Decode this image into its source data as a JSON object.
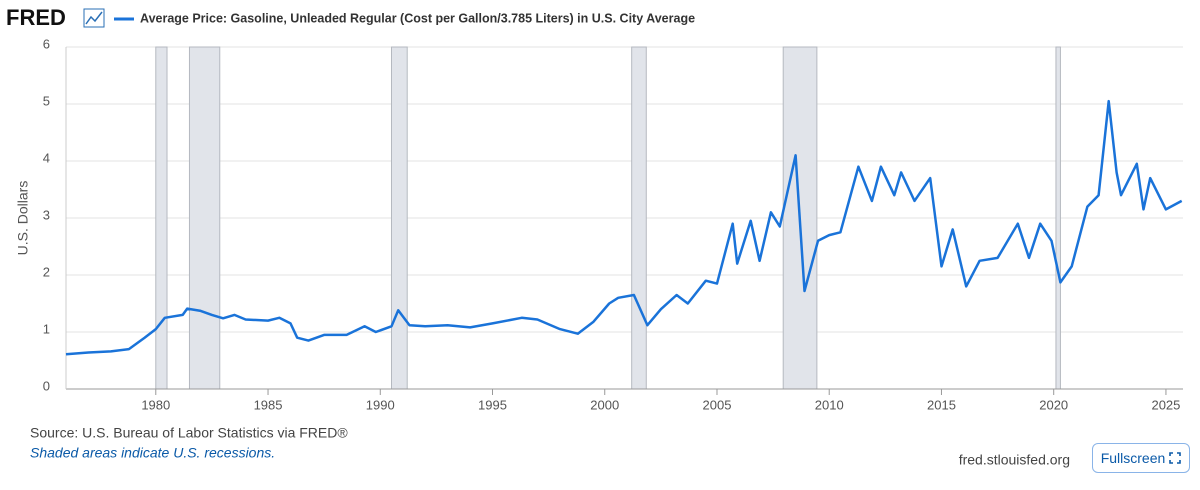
{
  "logo": "FRED",
  "fullscreen": "Fullscreen",
  "chart_data": {
    "type": "line",
    "y_label": "U.S. Dollars",
    "source": "Source: U.S. Bureau of Labor Statistics via FRED®",
    "note": "Shaded areas indicate U.S. recessions.",
    "site": "fred.stlouisfed.org",
    "x": [
      1976.0,
      1977.0,
      1978.0,
      1978.8,
      1979.5,
      1980.0,
      1980.4,
      1981.2,
      1981.4,
      1982.0,
      1982.5,
      1983.0,
      1983.5,
      1984.0,
      1985.0,
      1985.5,
      1986.0,
      1986.3,
      1986.8,
      1987.5,
      1988.5,
      1989.3,
      1989.8,
      1990.5,
      1990.8,
      1991.3,
      1992.0,
      1993.0,
      1994.0,
      1995.0,
      1996.3,
      1997.0,
      1998.0,
      1998.8,
      1999.5,
      2000.2,
      2000.6,
      2001.3,
      2001.9,
      2002.5,
      2003.2,
      2003.7,
      2004.5,
      2005.0,
      2005.7,
      2005.9,
      2006.5,
      2006.9,
      2007.4,
      2007.8,
      2008.5,
      2008.9,
      2009.5,
      2010.0,
      2010.5,
      2011.3,
      2011.9,
      2012.3,
      2012.9,
      2013.2,
      2013.8,
      2014.5,
      2015.0,
      2015.5,
      2016.1,
      2016.7,
      2017.5,
      2018.4,
      2018.9,
      2019.4,
      2019.9,
      2020.3,
      2020.8,
      2021.5,
      2022.0,
      2022.45,
      2022.8,
      2023.0,
      2023.7,
      2024.0,
      2024.3,
      2025.0,
      2025.7
    ],
    "series": [
      {
        "name": "Average Price: Gasoline, Unleaded Regular (Cost per Gallon/3.785 Liters) in U.S. City Average",
        "color": "#1a73d9",
        "values": [
          0.61,
          0.64,
          0.66,
          0.7,
          0.9,
          1.05,
          1.25,
          1.3,
          1.41,
          1.37,
          1.3,
          1.24,
          1.3,
          1.22,
          1.2,
          1.25,
          1.15,
          0.9,
          0.85,
          0.95,
          0.95,
          1.1,
          1.0,
          1.1,
          1.38,
          1.12,
          1.1,
          1.12,
          1.08,
          1.15,
          1.25,
          1.22,
          1.05,
          0.97,
          1.18,
          1.5,
          1.6,
          1.65,
          1.12,
          1.4,
          1.65,
          1.5,
          1.9,
          1.85,
          2.9,
          2.2,
          2.95,
          2.25,
          3.1,
          2.85,
          4.1,
          1.72,
          2.6,
          2.7,
          2.75,
          3.9,
          3.3,
          3.9,
          3.4,
          3.8,
          3.3,
          3.7,
          2.15,
          2.8,
          1.8,
          2.25,
          2.3,
          2.9,
          2.3,
          2.9,
          2.6,
          1.87,
          2.15,
          3.2,
          3.4,
          5.05,
          3.8,
          3.4,
          3.95,
          3.15,
          3.7,
          3.15,
          3.3
        ]
      }
    ],
    "recessions": [
      [
        1980.0,
        1980.5
      ],
      [
        1981.5,
        1982.85
      ],
      [
        1990.5,
        1991.2
      ],
      [
        2001.2,
        2001.85
      ],
      [
        2007.95,
        2009.45
      ],
      [
        2020.1,
        2020.3
      ]
    ],
    "xlim": [
      1976.0,
      2025.76
    ],
    "xticks": [
      1980,
      1985,
      1990,
      1995,
      2000,
      2005,
      2010,
      2015,
      2020,
      2025
    ],
    "ylim": [
      0,
      6
    ],
    "yticks": [
      0,
      1,
      2,
      3,
      4,
      5,
      6
    ],
    "grid": true
  }
}
